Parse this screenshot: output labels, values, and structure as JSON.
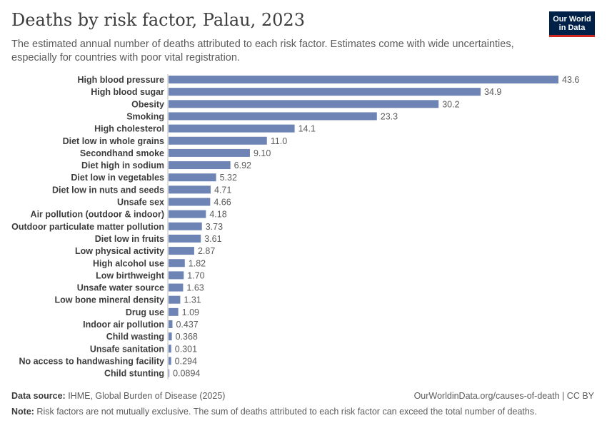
{
  "header": {
    "title": "Deaths by risk factor, Palau, 2023",
    "subtitle": "The estimated annual number of deaths attributed to each risk factor. Estimates come with wide uncertainties, especially for countries with poor vital registration.",
    "logo_line1": "Our World",
    "logo_line2": "in Data"
  },
  "footer": {
    "source_label": "Data source:",
    "source_text": " IHME, Global Burden of Disease (2025)",
    "url_text": "OurWorldinData.org/causes-of-death | CC BY",
    "note_label": "Note:",
    "note_text": " Risk factors are not mutually exclusive. The sum of deaths attributed to each risk factor can exceed the total number of deaths."
  },
  "colors": {
    "bar": "#6d84b4",
    "label": "#3d3d3d",
    "value": "#5b5b5b",
    "axis": "#bdbdbd"
  },
  "chart_data": {
    "type": "bar",
    "orientation": "horizontal",
    "title": "Deaths by risk factor, Palau, 2023",
    "categories": [
      "High blood pressure",
      "High blood sugar",
      "Obesity",
      "Smoking",
      "High cholesterol",
      "Diet low in whole grains",
      "Secondhand smoke",
      "Diet high in sodium",
      "Diet low in vegetables",
      "Diet low in nuts and seeds",
      "Unsafe sex",
      "Air pollution (outdoor & indoor)",
      "Outdoor particulate matter pollution",
      "Diet low in fruits",
      "Low physical activity",
      "High alcohol use",
      "Low birthweight",
      "Unsafe water source",
      "Low bone mineral density",
      "Drug use",
      "Indoor air pollution",
      "Child wasting",
      "Unsafe sanitation",
      "No access to handwashing facility",
      "Child stunting"
    ],
    "values": [
      43.6,
      34.9,
      30.2,
      23.3,
      14.1,
      11.0,
      9.1,
      6.92,
      5.32,
      4.71,
      4.66,
      4.18,
      3.73,
      3.61,
      2.87,
      1.82,
      1.7,
      1.63,
      1.31,
      1.09,
      0.437,
      0.368,
      0.301,
      0.294,
      0.0894
    ],
    "value_labels": [
      "43.6",
      "34.9",
      "30.2",
      "23.3",
      "14.1",
      "11.0",
      "9.10",
      "6.92",
      "5.32",
      "4.71",
      "4.66",
      "4.18",
      "3.73",
      "3.61",
      "2.87",
      "1.82",
      "1.70",
      "1.63",
      "1.31",
      "1.09",
      "0.437",
      "0.368",
      "0.301",
      "0.294",
      "0.0894"
    ],
    "xlim": [
      0,
      43.6
    ],
    "grid": false,
    "legend": "none"
  }
}
